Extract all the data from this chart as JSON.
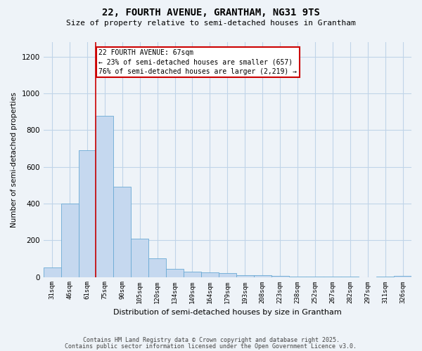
{
  "title1": "22, FOURTH AVENUE, GRANTHAM, NG31 9TS",
  "title2": "Size of property relative to semi-detached houses in Grantham",
  "xlabel": "Distribution of semi-detached houses by size in Grantham",
  "ylabel": "Number of semi-detached properties",
  "categories": [
    "31sqm",
    "46sqm",
    "61sqm",
    "75sqm",
    "90sqm",
    "105sqm",
    "120sqm",
    "134sqm",
    "149sqm",
    "164sqm",
    "179sqm",
    "193sqm",
    "208sqm",
    "223sqm",
    "238sqm",
    "252sqm",
    "267sqm",
    "282sqm",
    "297sqm",
    "311sqm",
    "326sqm"
  ],
  "values": [
    50,
    400,
    690,
    880,
    490,
    210,
    100,
    45,
    30,
    25,
    20,
    10,
    8,
    5,
    3,
    2,
    1,
    2,
    0,
    1,
    5
  ],
  "bar_color": "#c5d8ef",
  "bar_edge_color": "#6aaad4",
  "red_line_x": 2.5,
  "annotation_text": "22 FOURTH AVENUE: 67sqm\n← 23% of semi-detached houses are smaller (657)\n76% of semi-detached houses are larger (2,219) →",
  "annotation_box_color": "#ffffff",
  "annotation_box_edge": "#cc0000",
  "ylim": [
    0,
    1280
  ],
  "yticks": [
    0,
    200,
    400,
    600,
    800,
    1000,
    1200
  ],
  "footer1": "Contains HM Land Registry data © Crown copyright and database right 2025.",
  "footer2": "Contains public sector information licensed under the Open Government Licence v3.0.",
  "bg_color": "#eef3f8",
  "plot_bg_color": "#eef3f8",
  "grid_color": "#c0d4e8"
}
